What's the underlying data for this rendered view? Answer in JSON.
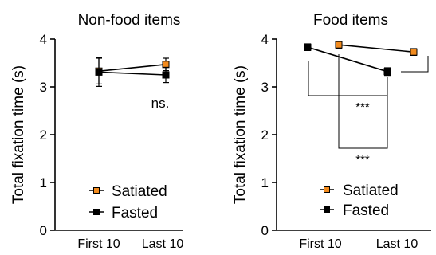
{
  "chart_data": [
    {
      "type": "line",
      "title": "Non-food items",
      "xlabel": "",
      "ylabel": "Total fixation time (s)",
      "categories": [
        "First 10",
        "Last 10"
      ],
      "ylim": [
        0,
        4
      ],
      "yticks": [
        "0",
        "1",
        "2",
        "3",
        "4"
      ],
      "grid": false,
      "legend": "bottom-center",
      "series": [
        {
          "name": "Satiated",
          "color": "#f28b1e",
          "marker": "square",
          "values": [
            3.33,
            3.47
          ],
          "errors": [
            0.27,
            0.13
          ]
        },
        {
          "name": "Fasted",
          "color": "#000000",
          "marker": "square",
          "values": [
            3.31,
            3.25
          ],
          "errors": [
            0.3,
            0.16
          ]
        }
      ],
      "annotations": [
        {
          "text": "ns."
        }
      ]
    },
    {
      "type": "line",
      "title": "Food items",
      "xlabel": "",
      "ylabel": "Total fixation time (s)",
      "categories": [
        "First 10",
        "Last 10"
      ],
      "ylim": [
        0,
        4
      ],
      "yticks": [
        "0",
        "1",
        "2",
        "3",
        "4"
      ],
      "grid": false,
      "legend": "bottom-center",
      "series": [
        {
          "name": "Satiated",
          "color": "#f28b1e",
          "marker": "square",
          "values": [
            3.88,
            3.73
          ],
          "errors": [
            0.07,
            0.07
          ]
        },
        {
          "name": "Fasted",
          "color": "#000000",
          "marker": "square",
          "values": [
            3.83,
            3.32
          ],
          "errors": [
            0.07,
            0.08
          ]
        }
      ],
      "annotations": [
        {
          "text": "***"
        },
        {
          "text": "***"
        },
        {
          "text": "*"
        }
      ]
    }
  ]
}
